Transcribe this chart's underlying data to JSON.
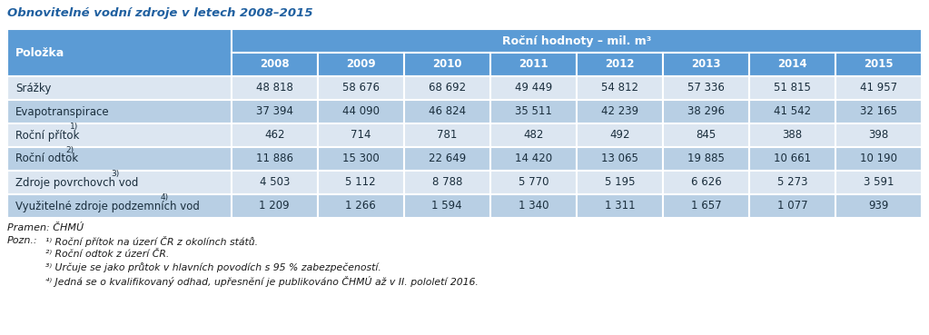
{
  "title": "Obnovitelné vodní zdroje v letech 2008–2015",
  "header_group": "Roční hodnoty – mil. m³",
  "col_header_left": "Položka",
  "years": [
    "2008",
    "2009",
    "2010",
    "2011",
    "2012",
    "2013",
    "2014",
    "2015"
  ],
  "rows": [
    {
      "label": "Srážky",
      "superscript": "",
      "values": [
        "48 818",
        "58 676",
        "68 692",
        "49 449",
        "54 812",
        "57 336",
        "51 815",
        "41 957"
      ]
    },
    {
      "label": "Evapotranspirace",
      "superscript": "",
      "values": [
        "37 394",
        "44 090",
        "46 824",
        "35 511",
        "42 239",
        "38 296",
        "41 542",
        "32 165"
      ]
    },
    {
      "label": "Roční přítok",
      "superscript": "1)",
      "values": [
        "462",
        "714",
        "781",
        "482",
        "492",
        "845",
        "388",
        "398"
      ]
    },
    {
      "label": "Roční odtok",
      "superscript": "2)",
      "values": [
        "11 886",
        "15 300",
        "22 649",
        "14 420",
        "13 065",
        "19 885",
        "10 661",
        "10 190"
      ]
    },
    {
      "label": "Zdroje povrchovch vod",
      "superscript": "3)",
      "values": [
        "4 503",
        "5 112",
        "8 788",
        "5 770",
        "5 195",
        "6 626",
        "5 273",
        "3 591"
      ]
    },
    {
      "label": "Využitelné zdroje podzemních vod",
      "superscript": "4)",
      "values": [
        "1 209",
        "1 266",
        "1 594",
        "1 340",
        "1 311",
        "1 657",
        "1 077",
        "939"
      ]
    }
  ],
  "footnote_source": "Pramen: ČHMÚ",
  "footnote_label": "Pozn.:",
  "footnotes": [
    "¹⁾ Roční přítok na úzerí ČR z okolínch států.",
    "²⁾ Roční odtok z úzerí ČR.",
    "³⁾ Určuje se jako průtok v hlavních povodích s 95 % zabezpečeností.",
    "⁴⁾ Jedná se o kvalifikovaný odhad, upřesnění je publikováno ČHMÚ až v II. pololetí 2016."
  ],
  "title_color": "#2060a0",
  "header_bg_color": "#5b9bd5",
  "header_text_color": "#ffffff",
  "row_bg_color_odd": "#dce6f1",
  "row_bg_color_even": "#b8cfe4",
  "border_color": "#ffffff",
  "text_color": "#1a2e3d",
  "footnote_color": "#1a1a1a"
}
